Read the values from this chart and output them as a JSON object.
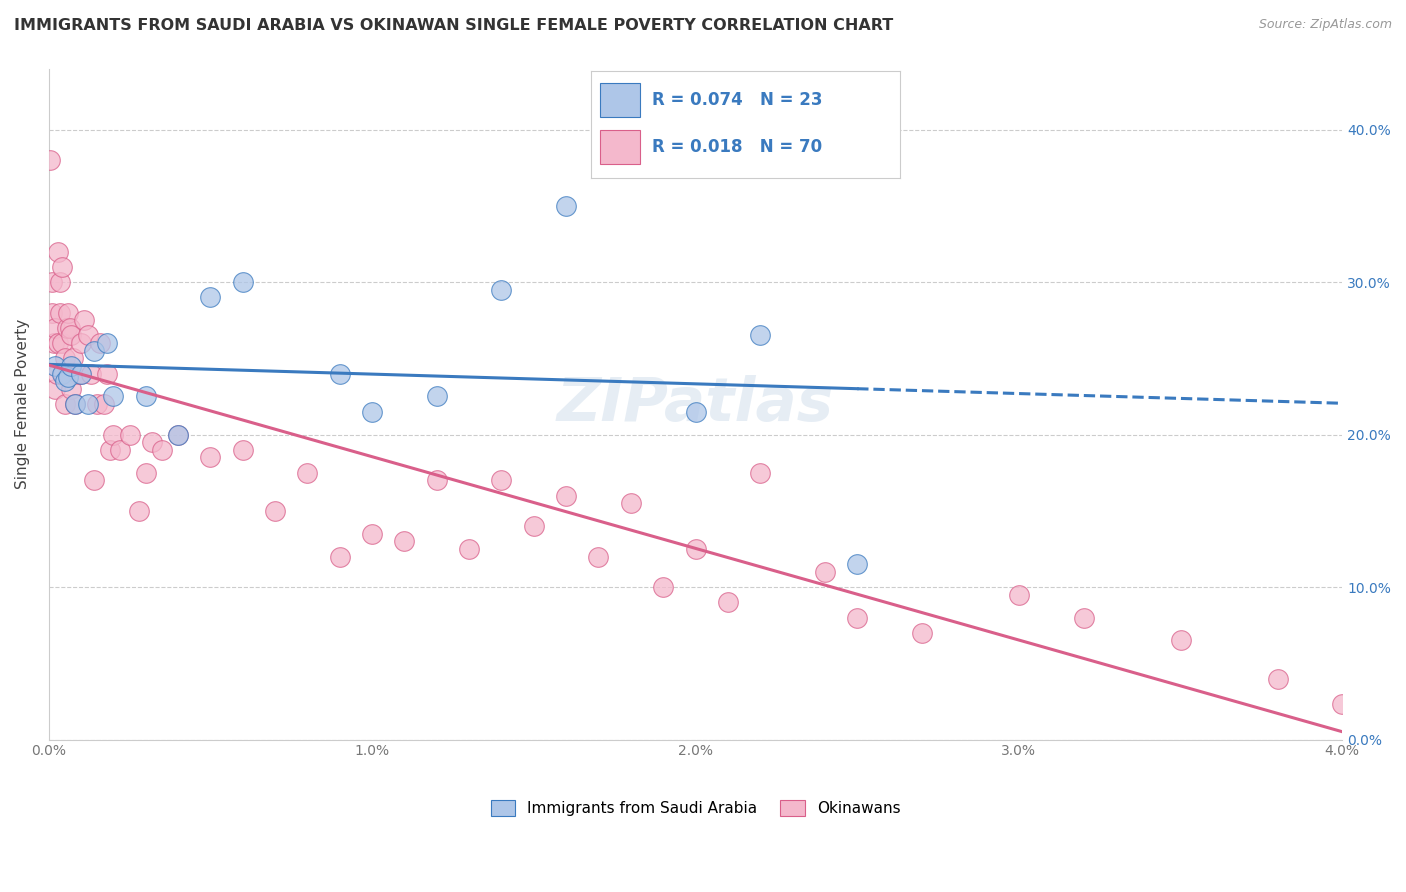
{
  "title": "IMMIGRANTS FROM SAUDI ARABIA VS OKINAWAN SINGLE FEMALE POVERTY CORRELATION CHART",
  "source": "Source: ZipAtlas.com",
  "ylabel": "Single Female Poverty",
  "legend_label1": "Immigrants from Saudi Arabia",
  "legend_label2": "Okinawans",
  "r1": 0.074,
  "n1": 23,
  "r2": 0.018,
  "n2": 70,
  "xmin": 0.0,
  "xmax": 0.04,
  "ymin": 0.0,
  "ymax": 0.44,
  "blue_color": "#aec6e8",
  "pink_color": "#f4b8cc",
  "blue_line_color": "#3a7abf",
  "pink_line_color": "#d95f8a",
  "blue_x": [
    0.0002,
    0.0004,
    0.0005,
    0.0006,
    0.0007,
    0.0008,
    0.001,
    0.0012,
    0.0014,
    0.0018,
    0.002,
    0.003,
    0.004,
    0.005,
    0.006,
    0.009,
    0.01,
    0.012,
    0.014,
    0.016,
    0.02,
    0.022,
    0.025
  ],
  "blue_y": [
    0.245,
    0.24,
    0.235,
    0.238,
    0.245,
    0.22,
    0.24,
    0.22,
    0.255,
    0.26,
    0.225,
    0.225,
    0.2,
    0.29,
    0.3,
    0.24,
    0.215,
    0.225,
    0.295,
    0.35,
    0.215,
    0.265,
    0.115
  ],
  "pink_x": [
    5e-05,
    0.0001,
    0.0001,
    0.00015,
    0.0002,
    0.0002,
    0.00025,
    0.0003,
    0.0003,
    0.00035,
    0.00035,
    0.0004,
    0.0004,
    0.00045,
    0.0005,
    0.0005,
    0.00055,
    0.0006,
    0.0006,
    0.00065,
    0.0007,
    0.0007,
    0.00075,
    0.0008,
    0.0009,
    0.001,
    0.001,
    0.0011,
    0.0012,
    0.0013,
    0.0014,
    0.0015,
    0.0016,
    0.0017,
    0.0018,
    0.0019,
    0.002,
    0.0022,
    0.0025,
    0.0028,
    0.003,
    0.0032,
    0.0035,
    0.004,
    0.005,
    0.006,
    0.007,
    0.008,
    0.009,
    0.01,
    0.011,
    0.012,
    0.013,
    0.014,
    0.015,
    0.016,
    0.017,
    0.018,
    0.019,
    0.02,
    0.021,
    0.022,
    0.024,
    0.025,
    0.027,
    0.03,
    0.032,
    0.035,
    0.038,
    0.04
  ],
  "pink_y": [
    0.38,
    0.3,
    0.28,
    0.26,
    0.27,
    0.23,
    0.24,
    0.32,
    0.26,
    0.28,
    0.3,
    0.26,
    0.31,
    0.24,
    0.22,
    0.25,
    0.27,
    0.28,
    0.24,
    0.27,
    0.265,
    0.23,
    0.25,
    0.22,
    0.24,
    0.24,
    0.26,
    0.275,
    0.265,
    0.24,
    0.17,
    0.22,
    0.26,
    0.22,
    0.24,
    0.19,
    0.2,
    0.19,
    0.2,
    0.15,
    0.175,
    0.195,
    0.19,
    0.2,
    0.185,
    0.19,
    0.15,
    0.175,
    0.12,
    0.135,
    0.13,
    0.17,
    0.125,
    0.17,
    0.14,
    0.16,
    0.12,
    0.155,
    0.1,
    0.125,
    0.09,
    0.175,
    0.11,
    0.08,
    0.07,
    0.095,
    0.08,
    0.065,
    0.04,
    0.023
  ],
  "watermark": "ZIPatlas",
  "yticks": [
    0.0,
    0.1,
    0.2,
    0.3,
    0.4
  ],
  "ytick_labels_left": [
    "",
    "",
    "",
    "",
    ""
  ],
  "ytick_labels_right": [
    "0.0%",
    "10.0%",
    "20.0%",
    "30.0%",
    "40.0%"
  ],
  "xticks": [
    0.0,
    0.005,
    0.01,
    0.015,
    0.02,
    0.025,
    0.03,
    0.035,
    0.04
  ],
  "xtick_labels": [
    "0.0%",
    "",
    "1.0%",
    "",
    "2.0%",
    "",
    "3.0%",
    "",
    "4.0%"
  ],
  "xtick_bottom_labels": [
    "0.0%",
    "4.0%"
  ]
}
